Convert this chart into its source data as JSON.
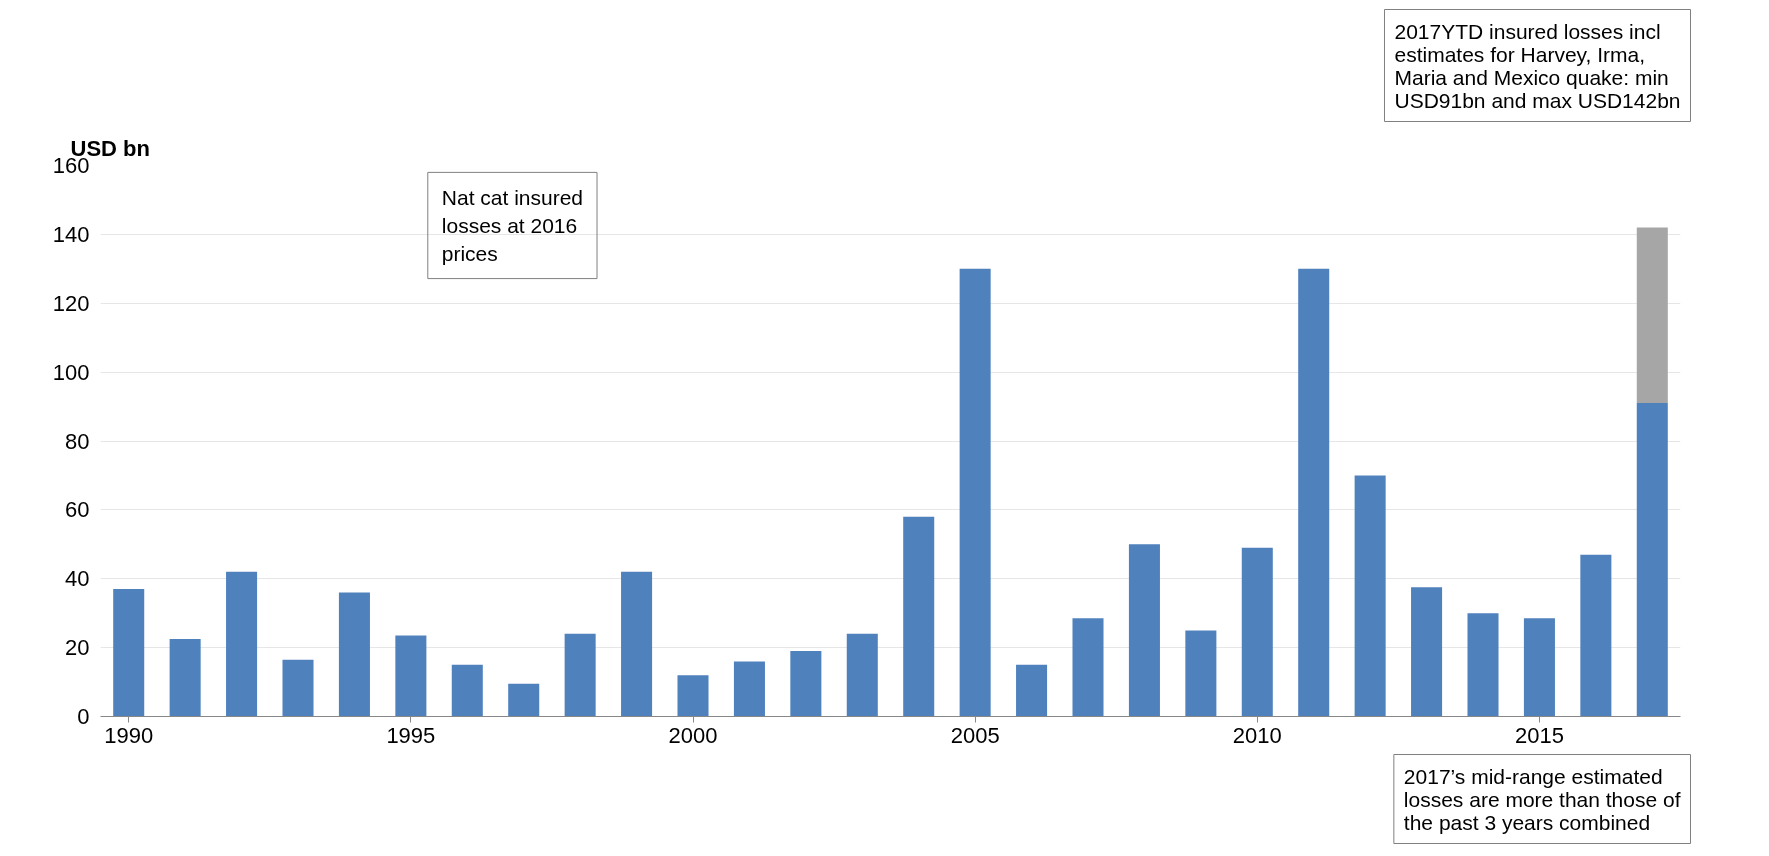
{
  "chart_data": {
    "type": "bar",
    "stacked": true,
    "ylabel": "USD bn",
    "x": [
      1990,
      1991,
      1992,
      1993,
      1994,
      1995,
      1996,
      1997,
      1998,
      1999,
      2000,
      2001,
      2002,
      2003,
      2004,
      2005,
      2006,
      2007,
      2008,
      2009,
      2010,
      2011,
      2012,
      2013,
      2014,
      2015,
      2016,
      2017
    ],
    "series": [
      {
        "color": "#4f81bd",
        "values": [
          37,
          22.5,
          42,
          16.5,
          36,
          23.5,
          15,
          9.5,
          24,
          42,
          12,
          16,
          19,
          24,
          58,
          130,
          15,
          28.5,
          50,
          25,
          49,
          130,
          70,
          37.5,
          30,
          28.5,
          47,
          91
        ]
      },
      {
        "color": "#a6a6a6",
        "values": [
          null,
          null,
          null,
          null,
          null,
          null,
          null,
          null,
          null,
          null,
          null,
          null,
          null,
          null,
          null,
          null,
          null,
          null,
          null,
          null,
          null,
          null,
          null,
          null,
          null,
          null,
          null,
          51
        ]
      }
    ],
    "xlim": [
      1989.5,
      2017.5
    ],
    "xticks": [
      1990,
      1995,
      2000,
      2005,
      2010,
      2015
    ],
    "ylim": [
      0,
      160
    ],
    "yticks": [
      0,
      20,
      40,
      60,
      80,
      100,
      120,
      140,
      160
    ],
    "grid": "y",
    "annotations": [
      "Nat cat insured losses at 2016 prices",
      "2017YTD insured losses incl estimates for Harvey, Irma, Maria and Mexico quake: min USD91bn and max USD142bn",
      "2017’s mid-range estimated losses are more than those of the past 3 years combined"
    ]
  }
}
